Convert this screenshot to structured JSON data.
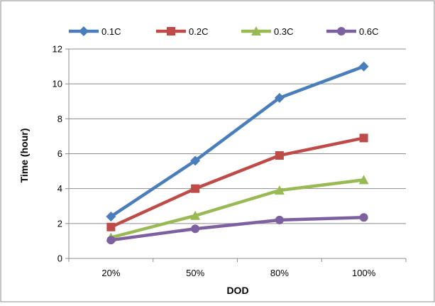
{
  "chart_data": {
    "type": "line",
    "title": "",
    "xlabel": "DOD",
    "ylabel": "Time (hour)",
    "categories": [
      "20%",
      "50%",
      "80%",
      "100%"
    ],
    "ylim": [
      0,
      12
    ],
    "yticks": [
      0,
      2,
      4,
      6,
      8,
      10,
      12
    ],
    "grid": true,
    "legend_position": "top",
    "series": [
      {
        "name": "0.1C",
        "values": [
          2.4,
          5.6,
          9.2,
          11.0
        ],
        "color": "#4a7ebb",
        "marker": "diamond"
      },
      {
        "name": "0.2C",
        "values": [
          1.8,
          4.0,
          5.9,
          6.9
        ],
        "color": "#be4b48",
        "marker": "square"
      },
      {
        "name": "0.3C",
        "values": [
          1.2,
          2.45,
          3.9,
          4.5
        ],
        "color": "#98b954",
        "marker": "triangle"
      },
      {
        "name": "0.6C",
        "values": [
          1.05,
          1.7,
          2.2,
          2.35
        ],
        "color": "#7d60a0",
        "marker": "circle"
      }
    ]
  }
}
